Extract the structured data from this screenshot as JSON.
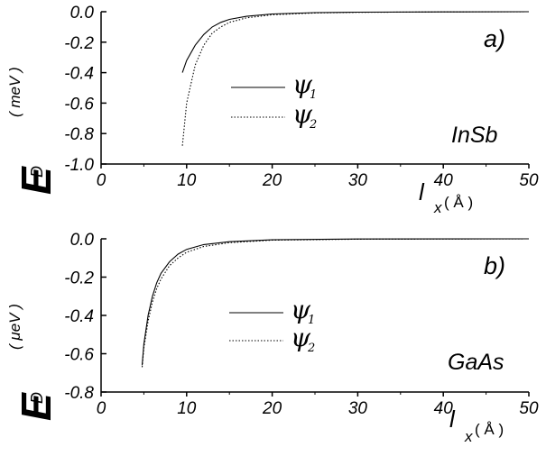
{
  "chart_data": [
    {
      "type": "line",
      "panel_label": "a)",
      "material": "InSb",
      "ylabel": {
        "symbol": "E",
        "subscript": "D",
        "unit": "( meV )"
      },
      "xlabel": {
        "symbol": "l",
        "subscript": "x",
        "unit": "( Å )"
      },
      "xlim": [
        0,
        50
      ],
      "ylim": [
        -1.0,
        0.0
      ],
      "xticks": [
        "0",
        "10",
        "20",
        "30",
        "40",
        "50"
      ],
      "yticks": [
        "0.0",
        "-0.2",
        "-0.4",
        "-0.6",
        "-0.8",
        "-1.0"
      ],
      "legend": {
        "position": "center"
      },
      "series": [
        {
          "name": "ψ1",
          "symbol": "ψ",
          "index": "1",
          "style": "solid",
          "x": [
            9.5,
            10,
            11,
            12,
            13,
            14,
            15,
            17,
            20,
            25,
            30,
            40,
            50
          ],
          "y": [
            -0.4,
            -0.32,
            -0.22,
            -0.15,
            -0.1,
            -0.07,
            -0.05,
            -0.03,
            -0.015,
            -0.006,
            -0.003,
            -0.001,
            0.0
          ]
        },
        {
          "name": "ψ2",
          "symbol": "ψ",
          "index": "2",
          "style": "dotted",
          "x": [
            9.5,
            10,
            11,
            12,
            13,
            14,
            15,
            17,
            20,
            25,
            30,
            40,
            50
          ],
          "y": [
            -0.88,
            -0.6,
            -0.35,
            -0.22,
            -0.14,
            -0.1,
            -0.07,
            -0.04,
            -0.02,
            -0.008,
            -0.004,
            -0.001,
            0.0
          ]
        }
      ]
    },
    {
      "type": "line",
      "panel_label": "b)",
      "material": "GaAs",
      "ylabel": {
        "symbol": "E",
        "subscript": "D",
        "unit": "( μeV )"
      },
      "xlabel": {
        "symbol": "l",
        "subscript": "x",
        "unit": "( Å )"
      },
      "xlim": [
        0,
        50
      ],
      "ylim": [
        -0.8,
        0.0
      ],
      "xticks": [
        "0",
        "10",
        "20",
        "30",
        "40",
        "50"
      ],
      "yticks": [
        "0.0",
        "-0.2",
        "-0.4",
        "-0.6",
        "-0.8"
      ],
      "legend": {
        "position": "center"
      },
      "series": [
        {
          "name": "ψ1",
          "symbol": "ψ",
          "index": "1",
          "style": "solid",
          "x": [
            4.8,
            5,
            5.5,
            6,
            6.5,
            7,
            8,
            9,
            10,
            12,
            15,
            20,
            30,
            50
          ],
          "y": [
            -0.66,
            -0.55,
            -0.4,
            -0.3,
            -0.23,
            -0.18,
            -0.12,
            -0.08,
            -0.055,
            -0.03,
            -0.015,
            -0.005,
            -0.001,
            0.0
          ]
        },
        {
          "name": "ψ2",
          "symbol": "ψ",
          "index": "2",
          "style": "dotted",
          "x": [
            4.8,
            5,
            5.5,
            6,
            6.5,
            7,
            8,
            9,
            10,
            12,
            15,
            20,
            30,
            50
          ],
          "y": [
            -0.67,
            -0.57,
            -0.43,
            -0.33,
            -0.26,
            -0.21,
            -0.14,
            -0.1,
            -0.07,
            -0.04,
            -0.02,
            -0.007,
            -0.002,
            0.0
          ]
        }
      ]
    }
  ]
}
